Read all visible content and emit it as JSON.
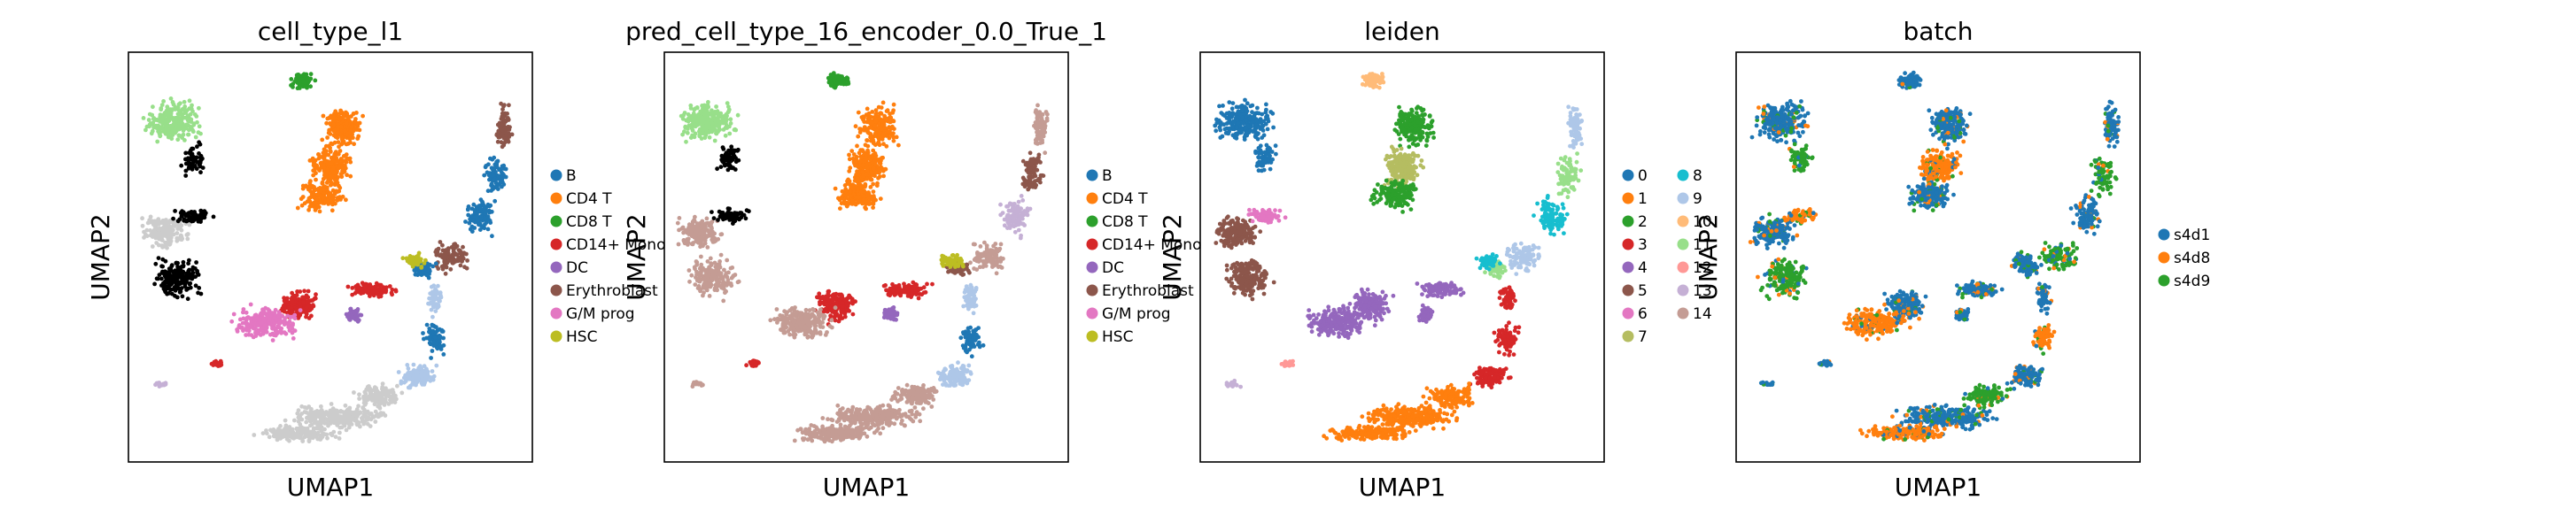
{
  "chart_data": [
    {
      "type": "scatter",
      "title": "cell_type_l1",
      "xlabel": "UMAP1",
      "ylabel": "UMAP2",
      "legend_position": "right",
      "series": [
        {
          "name": "B",
          "color": "#1f77b4"
        },
        {
          "name": "CD4 T",
          "color": "#ff7f0e"
        },
        {
          "name": "CD8 T",
          "color": "#2ca02c"
        },
        {
          "name": "CD14+ Mono",
          "color": "#d62728"
        },
        {
          "name": "DC",
          "color": "#9467bd"
        },
        {
          "name": "Erythroblast",
          "color": "#8c564b"
        },
        {
          "name": "G/M prog",
          "color": "#e377c2"
        },
        {
          "name": "HSC",
          "color": "#bcbd22"
        }
      ]
    },
    {
      "type": "scatter",
      "title": "pred_cell_type_16_encoder_0.0_True_1",
      "xlabel": "UMAP1",
      "ylabel": "UMAP2",
      "legend_position": "right",
      "series": [
        {
          "name": "B",
          "color": "#1f77b4"
        },
        {
          "name": "CD4 T",
          "color": "#ff7f0e"
        },
        {
          "name": "CD8 T",
          "color": "#2ca02c"
        },
        {
          "name": "CD14+ Mono",
          "color": "#d62728"
        },
        {
          "name": "DC",
          "color": "#9467bd"
        },
        {
          "name": "Erythroblast",
          "color": "#8c564b"
        },
        {
          "name": "G/M prog",
          "color": "#e377c2"
        },
        {
          "name": "HSC",
          "color": "#bcbd22"
        }
      ]
    },
    {
      "type": "scatter",
      "title": "leiden",
      "xlabel": "UMAP1",
      "ylabel": "UMAP2",
      "legend_position": "right",
      "series": [
        {
          "name": "0",
          "color": "#1f77b4"
        },
        {
          "name": "1",
          "color": "#ff7f0e"
        },
        {
          "name": "2",
          "color": "#2ca02c"
        },
        {
          "name": "3",
          "color": "#d62728"
        },
        {
          "name": "4",
          "color": "#9467bd"
        },
        {
          "name": "5",
          "color": "#8c564b"
        },
        {
          "name": "6",
          "color": "#e377c2"
        },
        {
          "name": "7",
          "color": "#b5bd61"
        },
        {
          "name": "8",
          "color": "#17becf"
        },
        {
          "name": "9",
          "color": "#aec7e8"
        },
        {
          "name": "10",
          "color": "#ffbb78"
        },
        {
          "name": "11",
          "color": "#98df8a"
        },
        {
          "name": "12",
          "color": "#ff9896"
        },
        {
          "name": "13",
          "color": "#c5b0d5"
        },
        {
          "name": "14",
          "color": "#c49c94"
        }
      ]
    },
    {
      "type": "scatter",
      "title": "batch",
      "xlabel": "UMAP1",
      "ylabel": "UMAP2",
      "legend_position": "right",
      "series": [
        {
          "name": "s4d1",
          "color": "#1f77b4"
        },
        {
          "name": "s4d8",
          "color": "#ff7f0e"
        },
        {
          "name": "s4d9",
          "color": "#2ca02c"
        }
      ]
    }
  ]
}
